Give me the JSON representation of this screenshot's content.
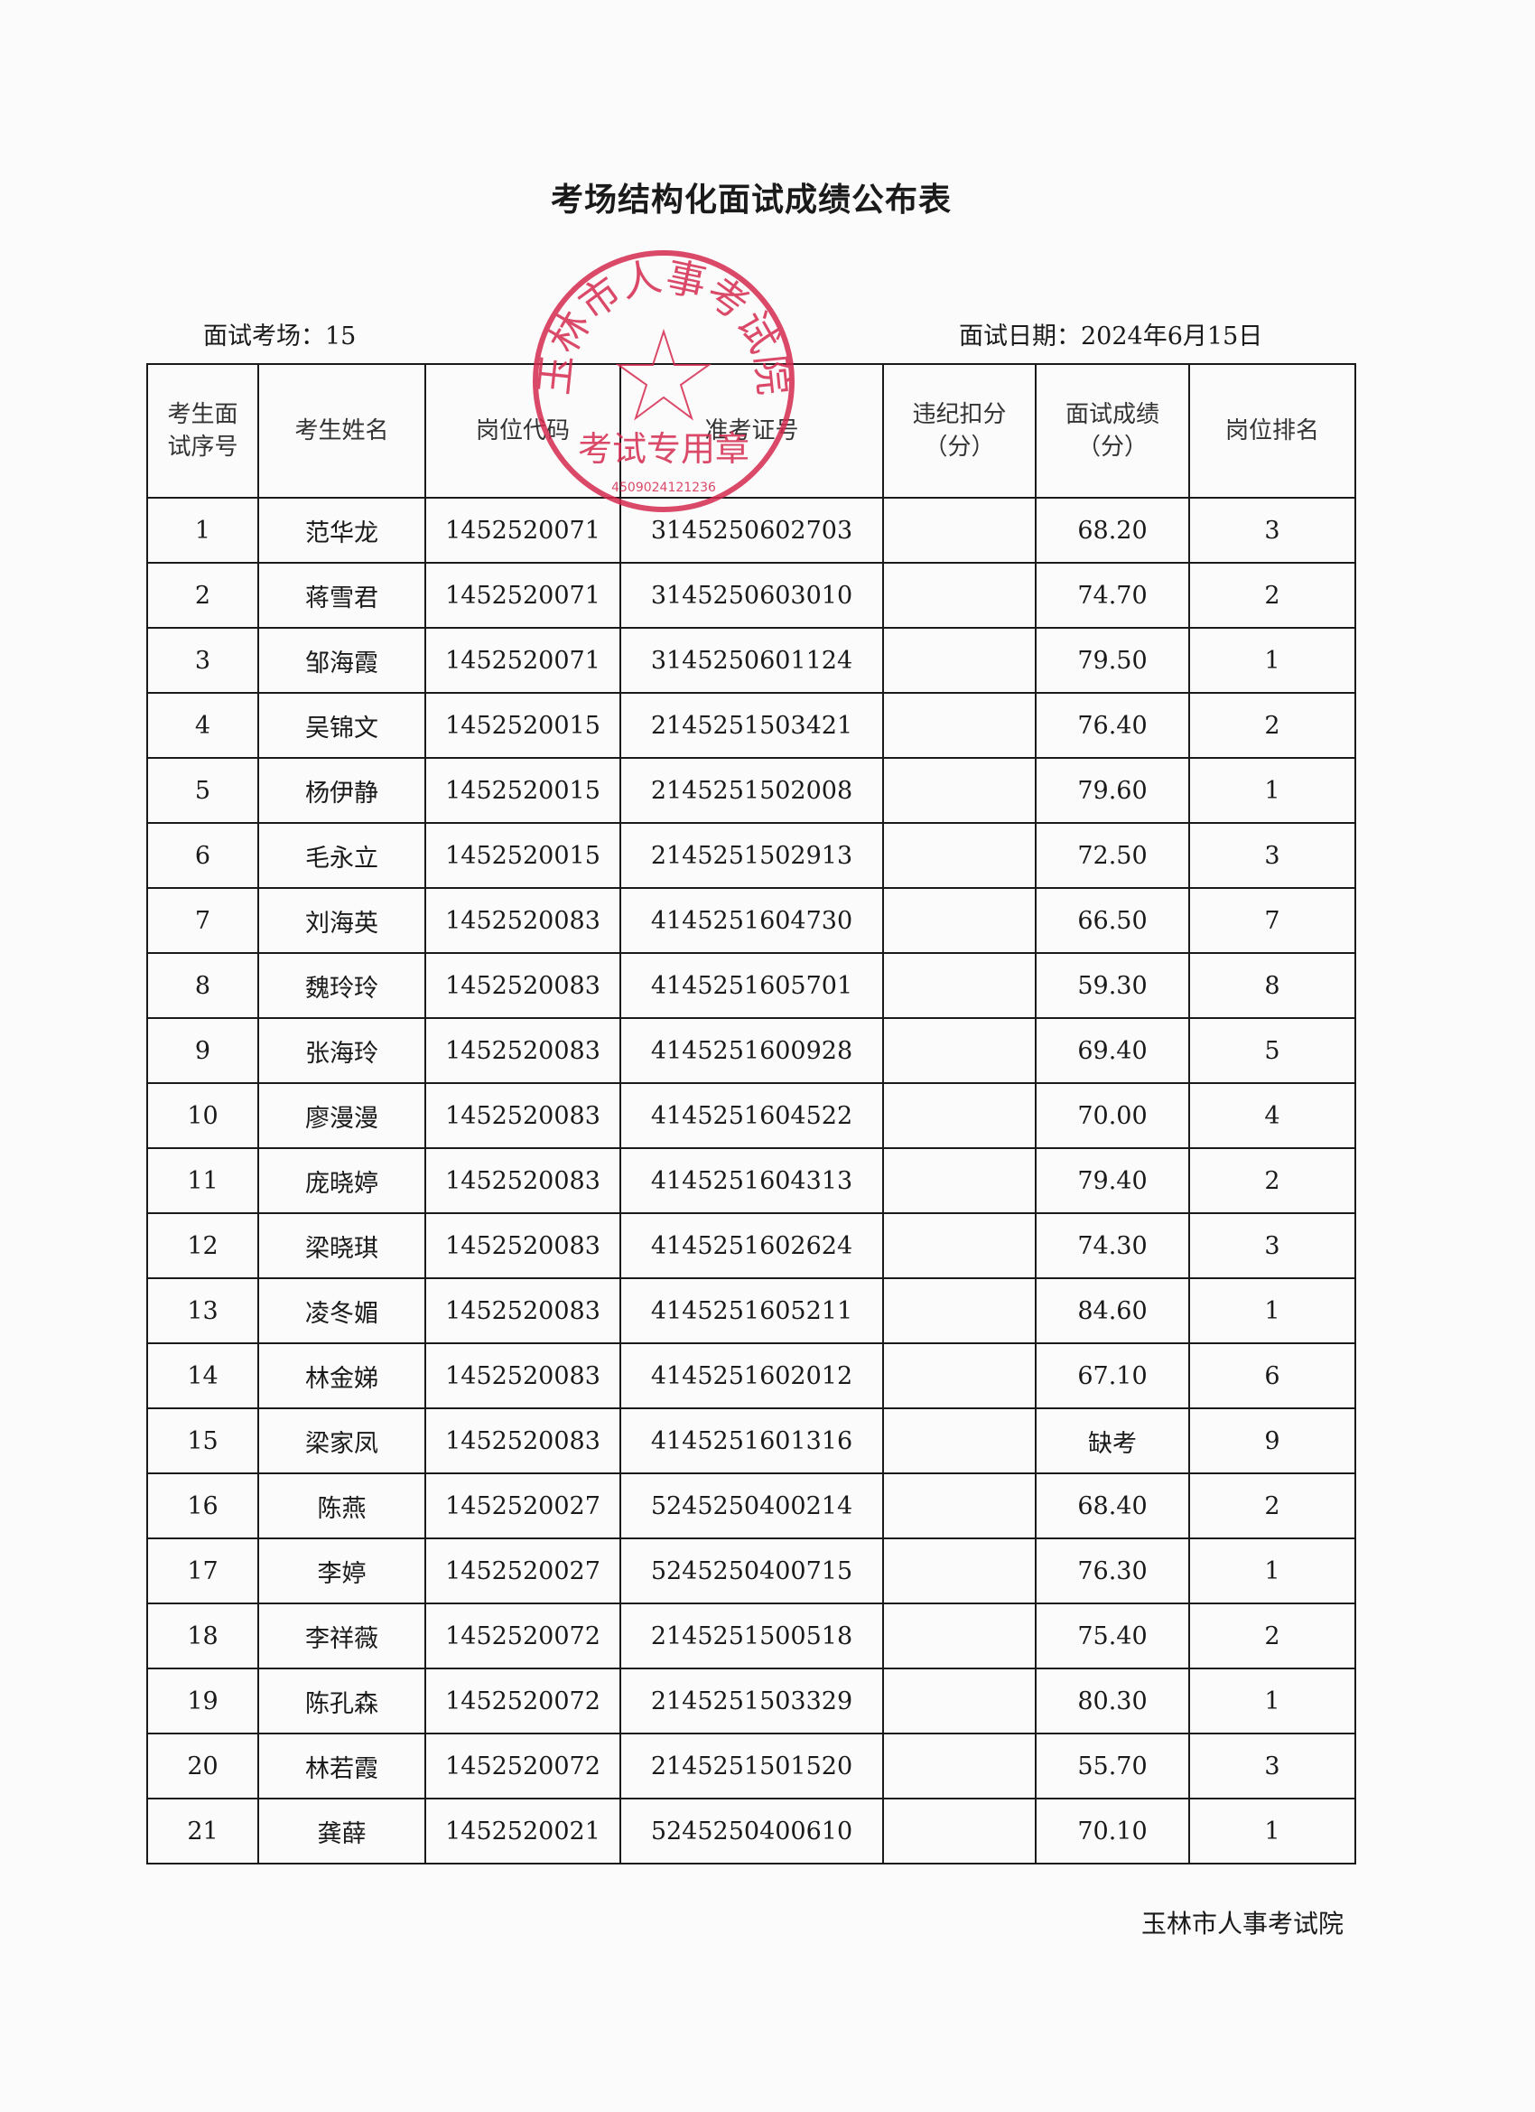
{
  "title": "考场结构化面试成绩公布表",
  "exam_room": "面试考场：15",
  "exam_date": "面试日期：2024年6月15日",
  "stamp": {
    "color": "#d62a50",
    "outer_text": "玉林市人事考试院",
    "inner_text": "考试专用章",
    "number": "4509024121236"
  },
  "table": {
    "headers": [
      "考生面试序号",
      "考生姓名",
      "岗位代码",
      "准考证号",
      "违纪扣分（分）",
      "面试成绩（分）",
      "岗位排名"
    ],
    "rows": [
      [
        "1",
        "范华龙",
        "1452520071",
        "3145250602703",
        "",
        "68.20",
        "3"
      ],
      [
        "2",
        "蒋雪君",
        "1452520071",
        "3145250603010",
        "",
        "74.70",
        "2"
      ],
      [
        "3",
        "邹海霞",
        "1452520071",
        "3145250601124",
        "",
        "79.50",
        "1"
      ],
      [
        "4",
        "吴锦文",
        "1452520015",
        "2145251503421",
        "",
        "76.40",
        "2"
      ],
      [
        "5",
        "杨伊静",
        "1452520015",
        "2145251502008",
        "",
        "79.60",
        "1"
      ],
      [
        "6",
        "毛永立",
        "1452520015",
        "2145251502913",
        "",
        "72.50",
        "3"
      ],
      [
        "7",
        "刘海英",
        "1452520083",
        "4145251604730",
        "",
        "66.50",
        "7"
      ],
      [
        "8",
        "魏玲玲",
        "1452520083",
        "4145251605701",
        "",
        "59.30",
        "8"
      ],
      [
        "9",
        "张海玲",
        "1452520083",
        "4145251600928",
        "",
        "69.40",
        "5"
      ],
      [
        "10",
        "廖漫漫",
        "1452520083",
        "4145251604522",
        "",
        "70.00",
        "4"
      ],
      [
        "11",
        "庞晓婷",
        "1452520083",
        "4145251604313",
        "",
        "79.40",
        "2"
      ],
      [
        "12",
        "梁晓琪",
        "1452520083",
        "4145251602624",
        "",
        "74.30",
        "3"
      ],
      [
        "13",
        "凌冬媚",
        "1452520083",
        "4145251605211",
        "",
        "84.60",
        "1"
      ],
      [
        "14",
        "林金娣",
        "1452520083",
        "4145251602012",
        "",
        "67.10",
        "6"
      ],
      [
        "15",
        "梁家凤",
        "1452520083",
        "4145251601316",
        "",
        "缺考",
        "9"
      ],
      [
        "16",
        "陈燕",
        "1452520027",
        "5245250400214",
        "",
        "68.40",
        "2"
      ],
      [
        "17",
        "李婷",
        "1452520027",
        "5245250400715",
        "",
        "76.30",
        "1"
      ],
      [
        "18",
        "李祥薇",
        "1452520072",
        "2145251500518",
        "",
        "75.40",
        "2"
      ],
      [
        "19",
        "陈孔森",
        "1452520072",
        "2145251503329",
        "",
        "80.30",
        "1"
      ],
      [
        "20",
        "林若霞",
        "1452520072",
        "2145251501520",
        "",
        "55.70",
        "3"
      ],
      [
        "21",
        "龚薛",
        "1452520021",
        "5245250400610",
        "",
        "70.10",
        "1"
      ]
    ]
  },
  "footer": "玉林市人事考试院"
}
